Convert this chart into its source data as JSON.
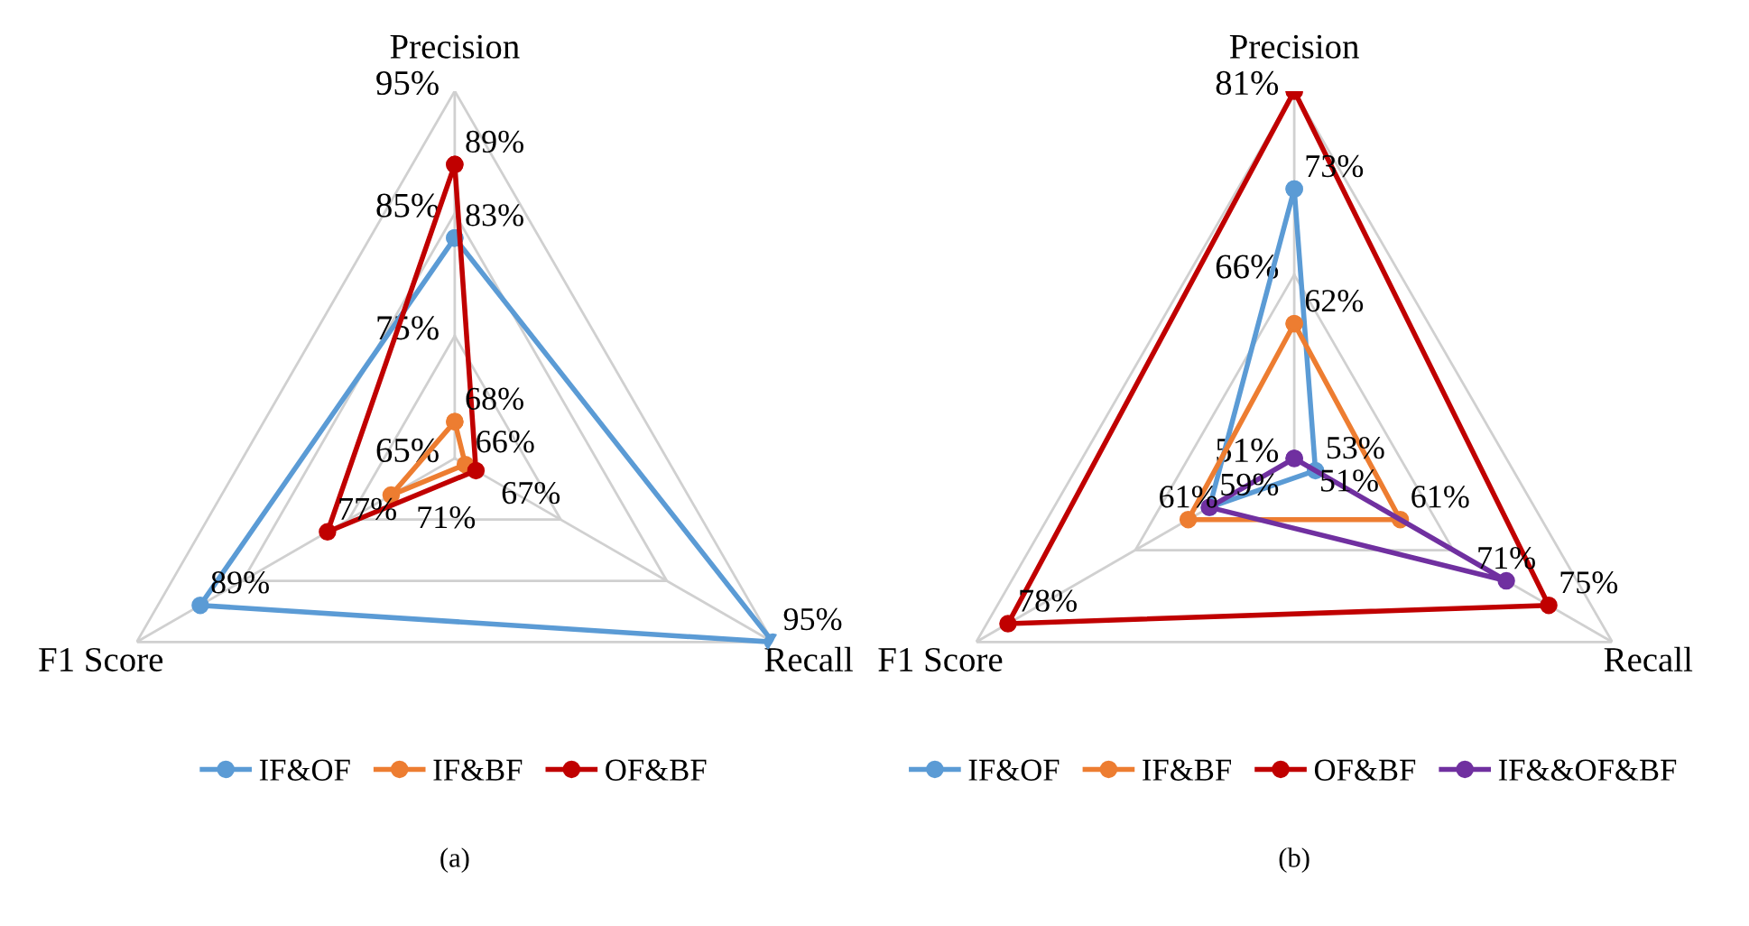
{
  "chart_data": [
    {
      "type": "radar",
      "categories": [
        "Precision",
        "Recall",
        "F1 Score"
      ],
      "ylim": [
        65,
        95
      ],
      "yticks": [
        {
          "value": 65,
          "label": "65%"
        },
        {
          "value": 75,
          "label": "75%"
        },
        {
          "value": 85,
          "label": "85%"
        },
        {
          "value": 95,
          "label": "95%"
        }
      ],
      "grid": true,
      "legend": "bottom",
      "marker": "circle",
      "annotations": [
        "(a)"
      ],
      "series": [
        {
          "name": "IF&OF",
          "color": "#5b9bd5",
          "values": [
            83,
            95,
            89
          ],
          "value_labels": [
            "83%",
            "95%",
            "89%"
          ]
        },
        {
          "name": "IF&BF",
          "color": "#ed7d31",
          "values": [
            68,
            66,
            71
          ],
          "value_labels": [
            "68%",
            "66%",
            "71%"
          ]
        },
        {
          "name": "OF&BF",
          "color": "#c00000",
          "values": [
            89,
            67,
            77
          ],
          "value_labels": [
            "89%",
            "67%",
            "77%"
          ]
        }
      ]
    },
    {
      "type": "radar",
      "categories": [
        "Precision",
        "Recall",
        "F1 Score"
      ],
      "ylim": [
        51,
        81
      ],
      "yticks": [
        {
          "value": 51,
          "label": "51%"
        },
        {
          "value": 66,
          "label": "66%"
        },
        {
          "value": 81,
          "label": "81%"
        }
      ],
      "grid": true,
      "legend": "bottom",
      "marker": "circle",
      "annotations": [
        "(b)"
      ],
      "series": [
        {
          "name": "IF&OF",
          "color": "#5b9bd5",
          "values": [
            73,
            53,
            59
          ],
          "value_labels": [
            "73%",
            "53%",
            "59%"
          ]
        },
        {
          "name": "IF&BF",
          "color": "#ed7d31",
          "values": [
            62,
            61,
            61
          ],
          "value_labels": [
            "62%",
            "61%",
            "61%"
          ]
        },
        {
          "name": "OF&BF",
          "color": "#c00000",
          "values": [
            81,
            75,
            78
          ],
          "value_labels": [
            null,
            "75%",
            "78%"
          ]
        },
        {
          "name": "IF&&OF&BF",
          "color": "#7030a0",
          "values": [
            51,
            71,
            59
          ],
          "value_labels": [
            "51%",
            "71%",
            null
          ]
        }
      ]
    }
  ]
}
